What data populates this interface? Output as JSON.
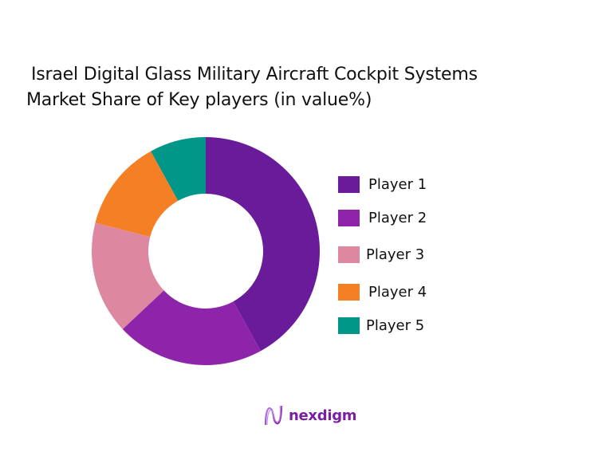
{
  "chart_data": {
    "type": "pie",
    "variant": "donut",
    "title": "Israel Digital Glass Military Aircraft Cockpit Systems Market Share of Key players (in value%)",
    "title_lines": [
      "Israel Digital Glass Military Aircraft Cockpit Systems",
      "Market Share of Key players (in value%)"
    ],
    "categories": [
      "Player 1",
      "Player 2",
      "Player 3",
      "Player 4",
      "Player 5"
    ],
    "values": [
      42,
      21,
      16,
      13,
      8
    ],
    "colors": [
      "#6a1b9a",
      "#8e24aa",
      "#de87a0",
      "#f57f25",
      "#009688"
    ],
    "start_angle_deg": 0,
    "direction": "clockwise",
    "legend_position": "right",
    "data_labels": false
  },
  "legend": {
    "items": [
      {
        "label": "Player 1",
        "color": "#6a1b9a"
      },
      {
        "label": "Player 2",
        "color": "#8e24aa"
      },
      {
        "label": "Player 3",
        "color": "#de87a0"
      },
      {
        "label": "Player 4",
        "color": "#f57f25"
      },
      {
        "label": "Player 5",
        "color": "#009688"
      }
    ]
  },
  "branding": {
    "logo_text": "nexdigm"
  }
}
